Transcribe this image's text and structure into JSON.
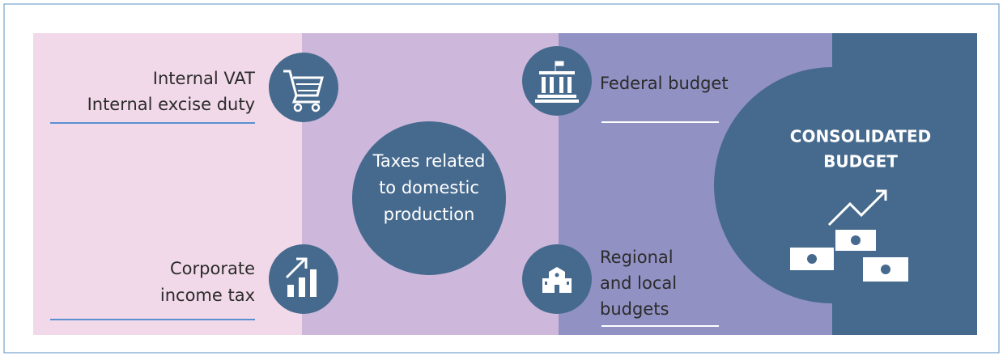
{
  "sources": [
    {
      "lines": [
        "Internal VAT",
        "Internal excise duty"
      ]
    },
    {
      "lines": [
        "Corporate",
        "income tax"
      ]
    }
  ],
  "center": {
    "lines": [
      "Taxes related",
      "to domestic",
      "production"
    ]
  },
  "destinations": [
    {
      "lines": [
        "Federal budget"
      ]
    },
    {
      "lines": [
        "Regional",
        "and local",
        "budgets"
      ]
    }
  ],
  "result": {
    "lines": [
      "CONSOLIDATED",
      "BUDGET"
    ]
  }
}
